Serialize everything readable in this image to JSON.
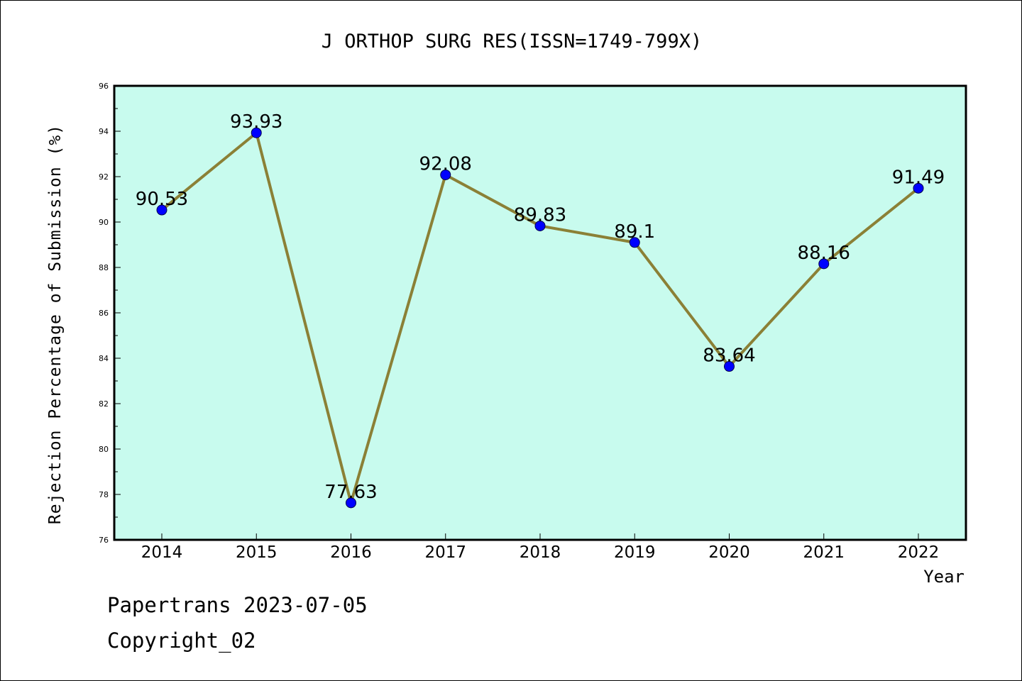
{
  "colors": {
    "plot_background": "#c8fbee",
    "line": "#8b8036",
    "marker_fill": "#0000ff",
    "marker_edge": "#00004d",
    "frame": "#000000"
  },
  "chart_data": {
    "type": "line",
    "title": "J ORTHOP SURG RES(ISSN=1749-799X)",
    "xlabel": "Year",
    "ylabel": "Rejection Percentage of Submission (%)",
    "categories": [
      "2014",
      "2015",
      "2016",
      "2017",
      "2018",
      "2019",
      "2020",
      "2021",
      "2022"
    ],
    "series": [
      {
        "values": [
          90.53,
          93.93,
          77.63,
          92.08,
          89.83,
          89.1,
          83.64,
          88.16,
          91.49
        ],
        "labels": [
          "90.53",
          "93.93",
          "77.63",
          "92.08",
          "89.83",
          "89.1",
          "83.64",
          "88.16",
          "91.49"
        ]
      }
    ],
    "ylim": [
      76,
      96
    ],
    "yticks": [
      "76",
      "78",
      "80",
      "82",
      "84",
      "86",
      "88",
      "90",
      "92",
      "94",
      "96"
    ],
    "grid": false,
    "legend": "none"
  },
  "footer": {
    "line1": "Papertrans 2023-07-05",
    "line2": "Copyright_02"
  }
}
